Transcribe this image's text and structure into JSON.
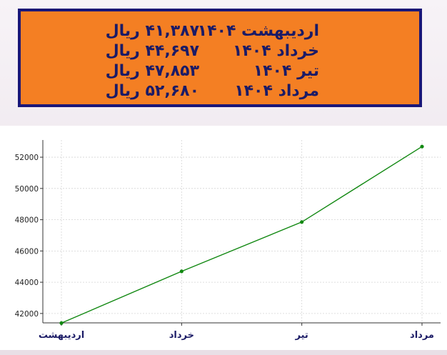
{
  "price_table": {
    "rows": [
      {
        "month": "اردیبهشت ۱۴۰۴",
        "price": "۴۱,۳۸۷ ریال"
      },
      {
        "month": "خرداد ۱۴۰۴",
        "price": "۴۴,۶۹۷ ریال"
      },
      {
        "month": "تیر ۱۴۰۴",
        "price": "۴۷,۸۵۳ ریال"
      },
      {
        "month": "مرداد ۱۴۰۴",
        "price": "۵۲,۶۸۰ ریال"
      }
    ]
  },
  "colors": {
    "box_background": "#f47f23",
    "box_border": "#1a1778",
    "box_text": "#1b1b66",
    "line": "#118811",
    "axis_label_text": "#1b1b66"
  },
  "chart_data": {
    "type": "line",
    "categories": [
      "اردیبهشت",
      "خرداد",
      "تیر",
      "مرداد"
    ],
    "series": [
      {
        "values": [
          41387,
          44697,
          47853,
          52680
        ]
      }
    ],
    "title": "",
    "xlabel": "",
    "ylabel": "",
    "ylim": [
      41400,
      53100
    ],
    "yticks": [
      "42000",
      "44000",
      "46000",
      "48000",
      "50000",
      "52000"
    ],
    "ytick_values": [
      42000,
      44000,
      46000,
      48000,
      50000,
      52000
    ],
    "grid": true,
    "markers": true
  }
}
